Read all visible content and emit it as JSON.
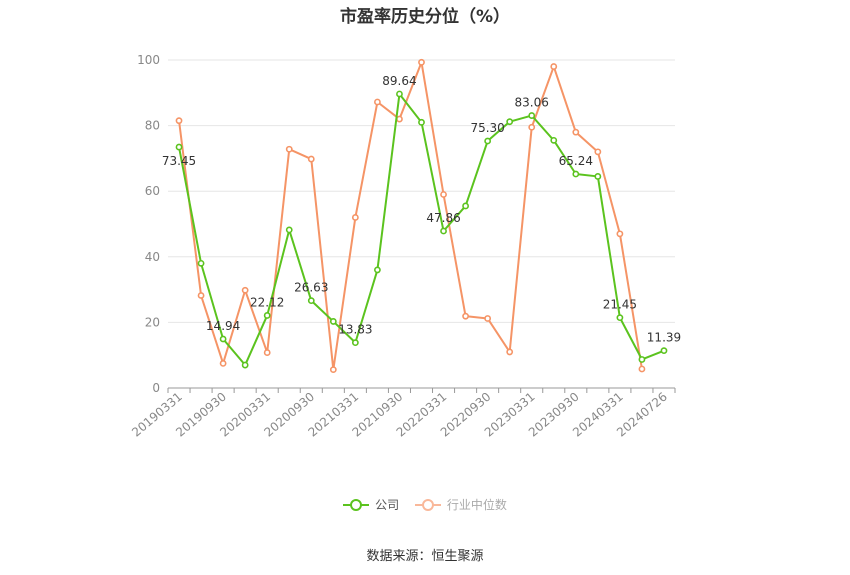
{
  "title": "市盈率历史分位（%）",
  "source": "数据来源：恒生聚源",
  "chart_data": {
    "type": "line",
    "x": [
      "20190331",
      "20190630",
      "20190930",
      "20191231",
      "20200331",
      "20200630",
      "20200930",
      "20201231",
      "20210331",
      "20210630",
      "20210930",
      "20211231",
      "20220331",
      "20220630",
      "20220930",
      "20221231",
      "20230331",
      "20230630",
      "20230930",
      "20231231",
      "20240331",
      "20240630",
      "20240726"
    ],
    "x_tick_labels": [
      "20190331",
      "20190930",
      "20200331",
      "20200930",
      "20210331",
      "20210930",
      "20220331",
      "20220930",
      "20230331",
      "20230930",
      "20240331",
      "20240726"
    ],
    "ylim": [
      0,
      100
    ],
    "y_ticks": [
      "0",
      "20",
      "40",
      "60",
      "80",
      "100"
    ],
    "grid": true,
    "legend_position": "bottom",
    "series": [
      {
        "name": "公司",
        "color": "#5bc31e",
        "values": [
          73.45,
          38.0,
          14.94,
          7.0,
          22.12,
          48.2,
          26.63,
          20.3,
          13.83,
          36.0,
          89.64,
          81.0,
          47.86,
          55.5,
          75.3,
          81.2,
          83.06,
          75.5,
          65.24,
          64.5,
          21.45,
          8.7,
          11.39
        ]
      },
      {
        "name": "行业中位数",
        "color": "#f59466",
        "values": [
          81.5,
          28.2,
          7.5,
          29.8,
          10.8,
          72.8,
          69.8,
          5.6,
          52.0,
          87.2,
          82.0,
          99.3,
          59.0,
          21.9,
          21.2,
          11.0,
          79.5,
          98.0,
          78.0,
          72.0,
          47.0,
          5.8,
          null
        ]
      }
    ],
    "data_labels": [
      {
        "series": 0,
        "index": 0,
        "text": "73.45",
        "pos": "below"
      },
      {
        "series": 0,
        "index": 2,
        "text": "14.94",
        "pos": "above"
      },
      {
        "series": 0,
        "index": 4,
        "text": "22.12",
        "pos": "above"
      },
      {
        "series": 0,
        "index": 6,
        "text": "26.63",
        "pos": "above"
      },
      {
        "series": 0,
        "index": 8,
        "text": "13.83",
        "pos": "above"
      },
      {
        "series": 0,
        "index": 10,
        "text": "89.64",
        "pos": "above"
      },
      {
        "series": 0,
        "index": 12,
        "text": "47.86",
        "pos": "above"
      },
      {
        "series": 0,
        "index": 14,
        "text": "75.30",
        "pos": "above"
      },
      {
        "series": 0,
        "index": 16,
        "text": "83.06",
        "pos": "above"
      },
      {
        "series": 0,
        "index": 18,
        "text": "65.24",
        "pos": "above"
      },
      {
        "series": 0,
        "index": 20,
        "text": "21.45",
        "pos": "above"
      },
      {
        "series": 0,
        "index": 22,
        "text": "11.39",
        "pos": "above"
      }
    ]
  }
}
